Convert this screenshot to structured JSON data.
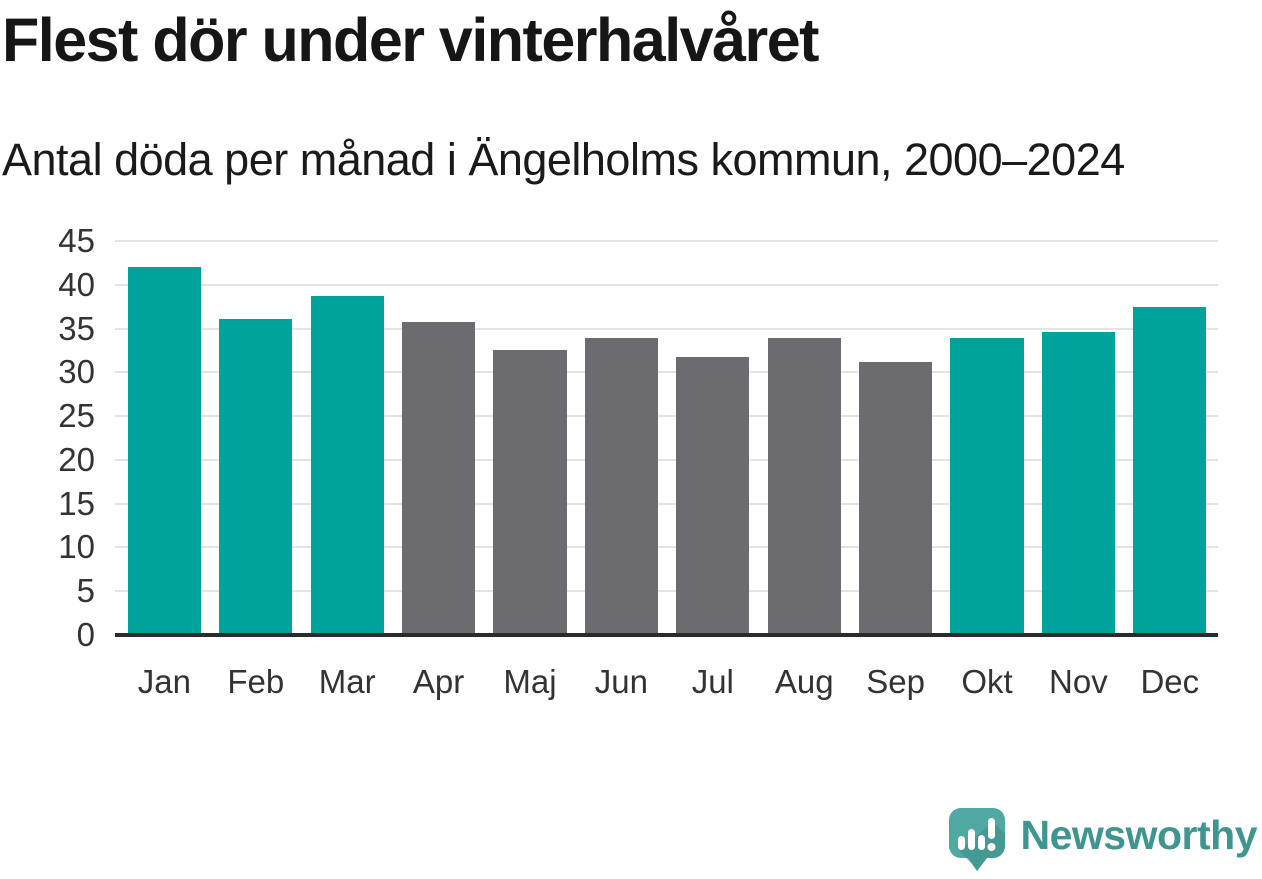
{
  "header": {
    "title": "Flest dör under vinterhalvåret",
    "subtitle": "Antal döda per månad i Ängelholms kommun, 2000–2024"
  },
  "chart_data": {
    "type": "bar",
    "categories": [
      "Jan",
      "Feb",
      "Mar",
      "Apr",
      "Maj",
      "Jun",
      "Jul",
      "Aug",
      "Sep",
      "Okt",
      "Nov",
      "Dec"
    ],
    "values": [
      42.0,
      36.1,
      38.7,
      35.7,
      32.5,
      33.9,
      31.7,
      33.9,
      31.2,
      33.9,
      34.6,
      37.5
    ],
    "bar_colors": [
      "#00A39B",
      "#00A39B",
      "#00A39B",
      "#6C6B70",
      "#6C6B70",
      "#6C6B70",
      "#6C6B70",
      "#6C6B70",
      "#6C6B70",
      "#00A39B",
      "#00A39B",
      "#00A39B"
    ],
    "title": "Flest dör under vinterhalvåret",
    "xlabel": "",
    "ylabel": "",
    "ylim": [
      0,
      45
    ],
    "yticks": [
      0,
      5,
      10,
      15,
      20,
      25,
      30,
      35,
      40,
      45
    ],
    "grid": true,
    "legend_position": "none",
    "highlight_color": "#00A39B",
    "muted_color": "#6C6B70",
    "axis_line_color": "#2b2b2b",
    "gridline_color": "#e3e3e3"
  },
  "footer": {
    "brand": "Newsworthy",
    "brand_color": "#3E9690",
    "logo_icon": "newsworthy-chart-bubble-icon",
    "logo_color": "#4FA8A2",
    "logo_shadow_color": "#3E8D87",
    "logo_glyph_color": "#ffffff"
  }
}
